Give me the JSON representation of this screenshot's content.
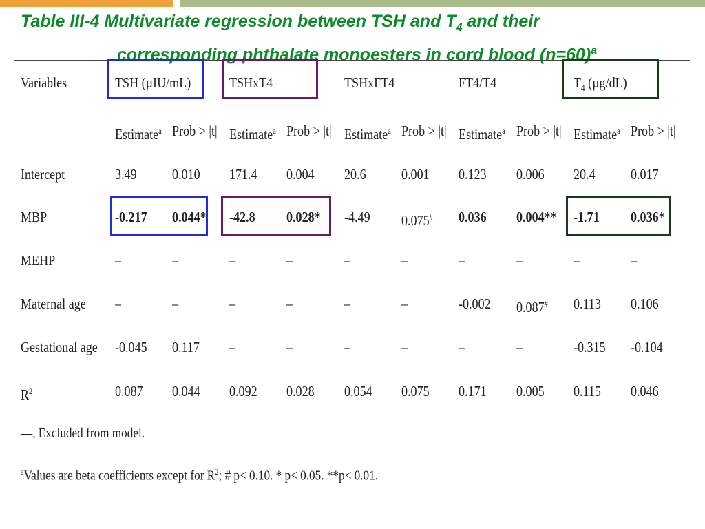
{
  "title": {
    "line1_prefix": "Table III-4 Multivariate regression between TSH and T",
    "line1_sub": "4",
    "line1_suffix": " and their",
    "line2": "corresponding phthalate monoesters in cord blood (n=60)",
    "line2_sup": "a"
  },
  "table": {
    "var_header": "Variables",
    "groups": [
      "TSH (µIU/mL)",
      "TSHxT4",
      "TSHxFT4",
      "FT4/T4"
    ],
    "group5_prefix": "T",
    "group5_sub": "4",
    "group5_suffix": " (µg/dL)",
    "estimate_label": "Estimate",
    "estimate_sup": "a",
    "prob_label": "Prob > |t|",
    "rows": [
      {
        "label": "Intercept",
        "values": [
          "3.49",
          "0.010",
          "171.4",
          "0.004",
          "20.6",
          "0.001",
          "0.123",
          "0.006",
          "20.4",
          "0.017"
        ]
      },
      {
        "label": "MBP",
        "values": [
          "-0.217",
          "0.044*",
          "-42.8",
          "0.028*",
          "-4.49",
          "0.075",
          "0.036",
          "0.004**",
          "-1.71",
          "0.036*"
        ],
        "value_sups": [
          "",
          "",
          "",
          "",
          "",
          "#",
          "",
          "",
          "",
          ""
        ]
      },
      {
        "label": "MEHP",
        "values": [
          "–",
          "–",
          "–",
          "–",
          "–",
          "–",
          "–",
          "–",
          "–",
          "–"
        ]
      },
      {
        "label": "Maternal age",
        "values": [
          "–",
          "–",
          "–",
          "–",
          "–",
          "–",
          "-0.002",
          "0.087",
          "0.113",
          "0.106"
        ],
        "value_sups": [
          "",
          "",
          "",
          "",
          "",
          "",
          "",
          "#",
          "",
          ""
        ]
      },
      {
        "label": "Gestational age",
        "values": [
          "-0.045",
          "0.117",
          "–",
          "–",
          "–",
          "–",
          "–",
          "–",
          "-0.315",
          "-0.104"
        ]
      },
      {
        "label": "R",
        "label_sup": "2",
        "values": [
          "0.087",
          "0.044",
          "0.092",
          "0.028",
          "0.054",
          "0.075",
          "0.171",
          "0.005",
          "0.115",
          "0.046"
        ]
      }
    ]
  },
  "footnotes": {
    "f1": "—, Excluded from model.",
    "f2_sup": "a",
    "f2_pre": "Values are beta coefficients except for R",
    "f2_sup2": "2",
    "f2_post": "; # p< 0.10. * p< 0.05. **p< 0.01."
  },
  "colors": {
    "title": "#0f8a2a",
    "box_tsh": "#1c2fd1",
    "box_tshxt4": "#6a1a6e",
    "box_t4": "#163d16"
  }
}
